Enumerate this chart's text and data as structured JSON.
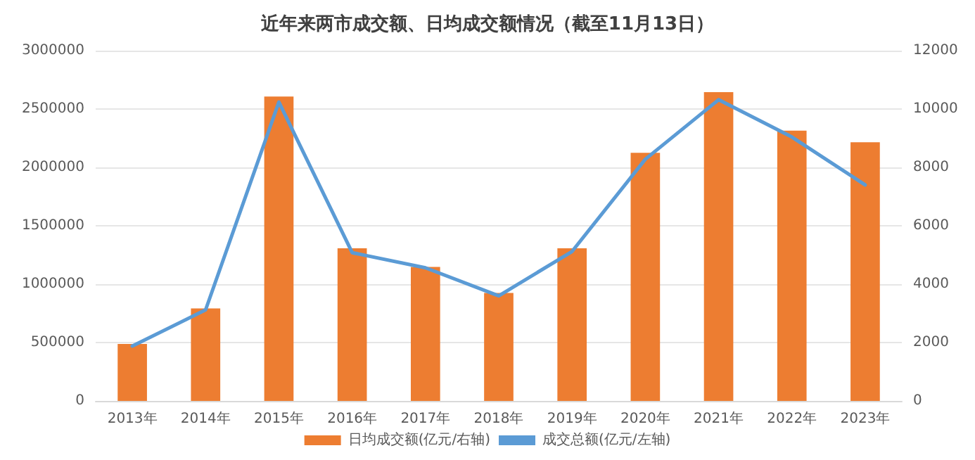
{
  "chart_data": {
    "type": "bar",
    "title": "近年来两市成交额、日均成交额情况（截至11月13日）",
    "categories": [
      "2013年",
      "2014年",
      "2015年",
      "2016年",
      "2017年",
      "2018年",
      "2019年",
      "2020年",
      "2021年",
      "2022年",
      "2023年"
    ],
    "series": [
      {
        "name": "日均成交额(亿元/右轴)",
        "axis": "y2",
        "color": "#ed7d31",
        "values": [
          1950,
          3170,
          10430,
          5230,
          4590,
          3700,
          5230,
          8500,
          10580,
          9260,
          8860
        ]
      },
      {
        "name": "成交总额(亿元/左轴)",
        "type": "line",
        "color": "#5b9bd5",
        "values": [
          470000,
          780000,
          2560000,
          1270000,
          1140000,
          900000,
          1280000,
          2070000,
          2580000,
          2260000,
          1850000
        ]
      }
    ],
    "ylim": [
      0,
      3000000
    ],
    "yticks": [
      0,
      500000,
      1000000,
      1500000,
      2000000,
      2500000,
      3000000
    ],
    "y2lim": [
      0,
      12000
    ],
    "y2ticks": [
      0,
      2000,
      4000,
      6000,
      8000,
      10000,
      12000
    ],
    "grid": "y",
    "legend": "bottom",
    "marker": "none",
    "line_style": "solid"
  }
}
